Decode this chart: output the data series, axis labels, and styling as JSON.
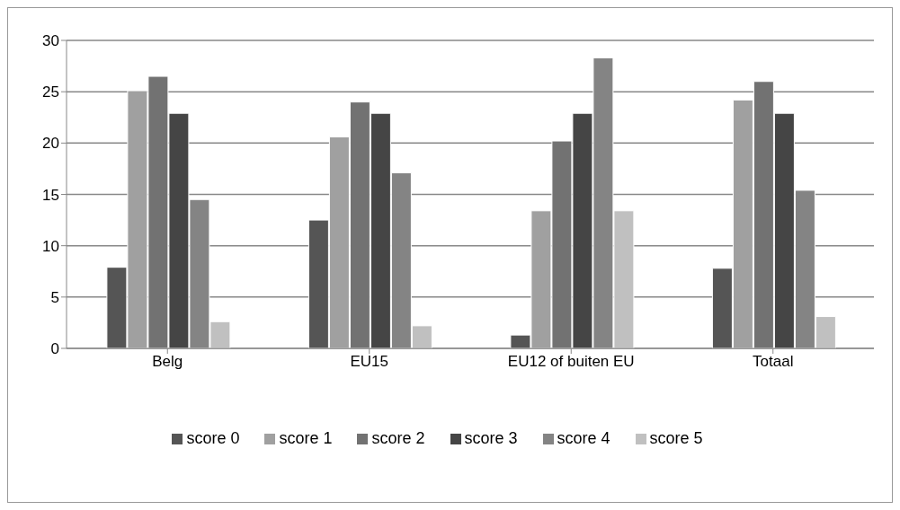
{
  "chart_data": {
    "type": "bar",
    "categories": [
      "Belg",
      "EU15",
      "EU12 of buiten EU",
      "Totaal"
    ],
    "series": [
      {
        "name": "score 0",
        "color": "#555555",
        "values": [
          7.9,
          12.5,
          1.3,
          7.8
        ]
      },
      {
        "name": "score 1",
        "color": "#a0a0a0",
        "values": [
          25.1,
          20.6,
          13.4,
          24.2
        ]
      },
      {
        "name": "score 2",
        "color": "#727272",
        "values": [
          26.5,
          24.0,
          20.2,
          26.0
        ]
      },
      {
        "name": "score 3",
        "color": "#454545",
        "values": [
          22.9,
          22.9,
          22.9,
          22.9
        ]
      },
      {
        "name": "score 4",
        "color": "#848484",
        "values": [
          14.5,
          17.1,
          28.3,
          15.4
        ]
      },
      {
        "name": "score 5",
        "color": "#c0c0c0",
        "values": [
          2.6,
          2.2,
          13.4,
          3.1
        ]
      }
    ],
    "ylim": [
      0,
      30
    ],
    "yticks": [
      0,
      5,
      10,
      15,
      20,
      25,
      30
    ],
    "grid": "y",
    "legend": "bottom"
  }
}
